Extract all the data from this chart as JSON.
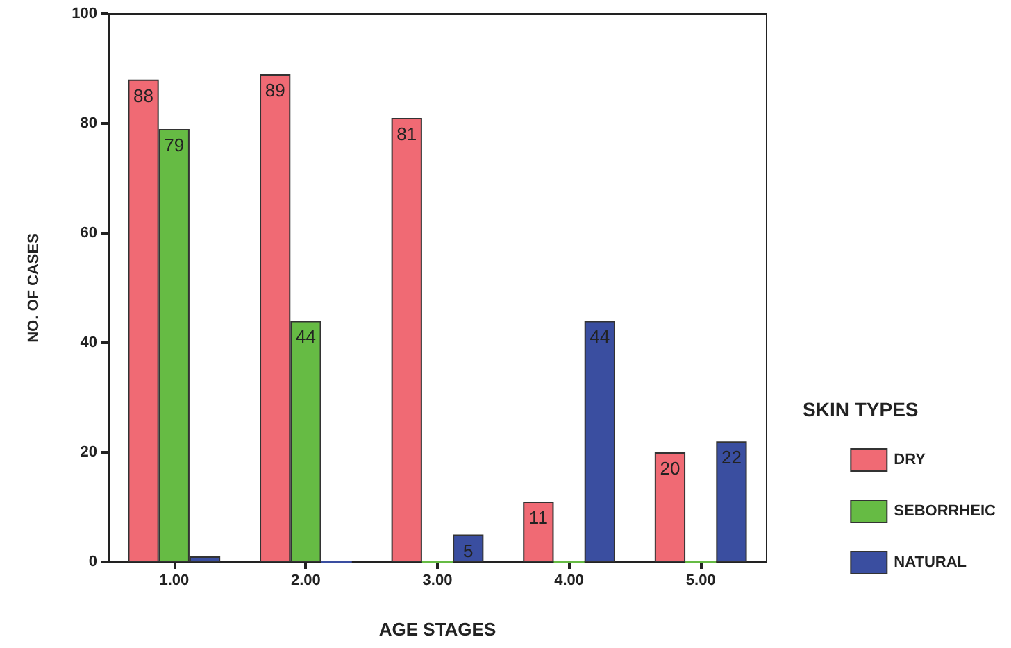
{
  "chart_data": {
    "type": "bar",
    "xlabel": "AGE STAGES",
    "ylabel": "NO. OF CASES",
    "legend_title": "SKIN TYPES",
    "categories": [
      "1.00",
      "2.00",
      "3.00",
      "4.00",
      "5.00"
    ],
    "series": [
      {
        "name": "DRY",
        "color": "#f06a74",
        "values": [
          88,
          89,
          81,
          11,
          20
        ],
        "value_labels": [
          "88",
          "89",
          "81",
          "11",
          "20"
        ]
      },
      {
        "name": "SEBORRHEIC",
        "color": "#66bb44",
        "values": [
          79,
          44,
          0,
          0,
          0
        ],
        "value_labels": [
          "79",
          "44",
          null,
          null,
          null
        ]
      },
      {
        "name": "NATURAL",
        "color": "#3a4ea0",
        "values": [
          1,
          0,
          5,
          44,
          22
        ],
        "value_labels": [
          null,
          null,
          "5",
          "44",
          "22"
        ]
      }
    ],
    "ylim": [
      0,
      100
    ],
    "yticks": [
      0,
      20,
      40,
      60,
      80,
      100
    ],
    "grid": false,
    "legend": "right"
  }
}
